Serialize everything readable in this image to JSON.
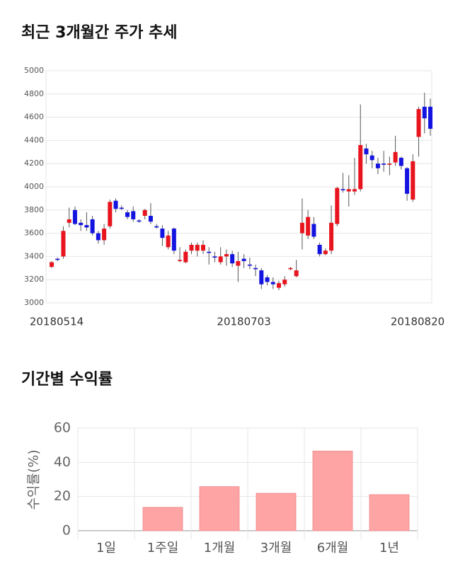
{
  "chart_data": [
    {
      "type": "candlestick",
      "title": "최근 3개월간 주가 추세",
      "categories": [
        "20180514",
        null,
        null,
        null,
        null,
        null,
        null,
        null,
        null,
        null,
        null,
        null,
        null,
        null,
        null,
        null,
        null,
        null,
        null,
        null,
        null,
        null,
        null,
        null,
        null,
        null,
        null,
        null,
        null,
        null,
        null,
        null,
        null,
        "20180703",
        null,
        null,
        null,
        null,
        null,
        null,
        null,
        null,
        null,
        null,
        null,
        null,
        null,
        null,
        null,
        null,
        null,
        null,
        null,
        null,
        null,
        null,
        null,
        null,
        null,
        null,
        null,
        null,
        null,
        null,
        null,
        "20180820"
      ],
      "open": [
        3310,
        3380,
        3400,
        3690,
        3800,
        3690,
        3670,
        3720,
        3600,
        3540,
        3660,
        3880,
        3820,
        3780,
        3790,
        3710,
        3750,
        3750,
        3660,
        3640,
        3480,
        3640,
        3360,
        3350,
        3450,
        3450,
        3450,
        3440,
        3400,
        3350,
        3400,
        3420,
        3320,
        3380,
        3330,
        3300,
        3280,
        3220,
        3180,
        3130,
        3160,
        3290,
        3230,
        3600,
        3580,
        3680,
        3500,
        3420,
        3450,
        3680,
        3980,
        3960,
        3960,
        3980,
        4330,
        4270,
        4200,
        4200,
        4190,
        4210,
        4250,
        4160,
        3890,
        4430,
        4690,
        4690
      ],
      "high": [
        3360,
        3390,
        3660,
        3820,
        3830,
        3720,
        3780,
        3750,
        3620,
        3680,
        3890,
        3900,
        3840,
        3800,
        3830,
        3720,
        3810,
        3860,
        3680,
        3670,
        3620,
        3650,
        3480,
        3460,
        3520,
        3520,
        3540,
        3480,
        3440,
        3480,
        3460,
        3450,
        3440,
        3420,
        3390,
        3330,
        3300,
        3240,
        3220,
        3190,
        3230,
        3310,
        3370,
        3900,
        3800,
        3740,
        3520,
        3470,
        3840,
        4000,
        4120,
        4100,
        4250,
        4710,
        4370,
        4310,
        4250,
        4310,
        4260,
        4440,
        4260,
        4170,
        4280,
        4690,
        4810,
        4760
      ],
      "low": [
        3300,
        3360,
        3380,
        3650,
        3670,
        3620,
        3620,
        3580,
        3510,
        3500,
        3640,
        3780,
        3800,
        3720,
        3700,
        3690,
        3720,
        3680,
        3640,
        3490,
        3460,
        3420,
        3350,
        3340,
        3420,
        3400,
        3420,
        3330,
        3350,
        3330,
        3320,
        3310,
        3180,
        3300,
        3290,
        3230,
        3120,
        3150,
        3120,
        3110,
        3140,
        3280,
        3220,
        3460,
        3550,
        3550,
        3400,
        3410,
        3420,
        3660,
        3950,
        3830,
        3930,
        3960,
        4200,
        4160,
        4110,
        4130,
        4100,
        4180,
        4150,
        3880,
        3870,
        4260,
        4460,
        4440
      ],
      "close": [
        3350,
        3370,
        3620,
        3720,
        3680,
        3670,
        3650,
        3600,
        3540,
        3640,
        3870,
        3810,
        3810,
        3740,
        3720,
        3700,
        3800,
        3700,
        3650,
        3560,
        3580,
        3450,
        3370,
        3440,
        3500,
        3500,
        3500,
        3430,
        3390,
        3400,
        3420,
        3340,
        3360,
        3360,
        3320,
        3290,
        3160,
        3180,
        3160,
        3170,
        3200,
        3300,
        3280,
        3690,
        3740,
        3570,
        3420,
        3450,
        3690,
        3990,
        3970,
        3980,
        3980,
        4360,
        4280,
        4230,
        4160,
        4190,
        4200,
        4300,
        4180,
        3940,
        4220,
        4670,
        4590,
        4500
      ],
      "up_color": "#e8141e",
      "down_color": "#1414e0",
      "ylim": [
        3000,
        5000
      ],
      "yticks": [
        3000,
        3200,
        3400,
        3600,
        3800,
        4000,
        4200,
        4400,
        4600,
        4800,
        5000
      ],
      "grid": true
    },
    {
      "type": "bar",
      "title": "기간별 수익률",
      "ylabel": "수익률(%)",
      "categories": [
        "1일",
        "1주일",
        "1개월",
        "3개월",
        "6개월",
        "1년"
      ],
      "values": [
        0,
        13.7,
        25.8,
        21.9,
        46.6,
        21.1
      ],
      "color": "#ffa4a4",
      "ylim": [
        0,
        60
      ],
      "yticks": [
        0,
        20,
        40,
        60
      ],
      "grid": true
    }
  ]
}
